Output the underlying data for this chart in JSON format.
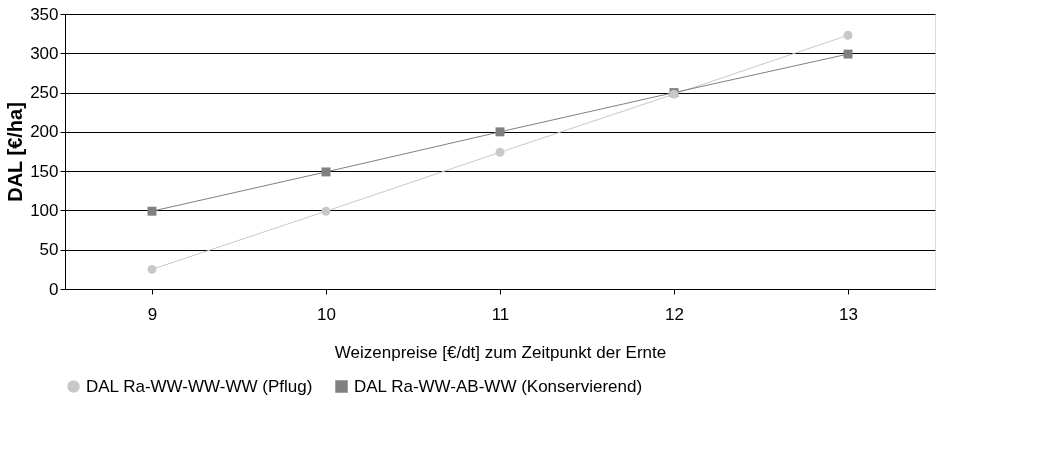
{
  "chart_data": {
    "type": "line",
    "xlabel": "Weizenpreise [€/dt] zum Zeitpunkt der Ernte",
    "ylabel": "DAL [€/ha]",
    "categories": [
      "9",
      "10",
      "11",
      "12",
      "13"
    ],
    "series": [
      {
        "name": "DAL Ra-WW-WW-WW (Pflug)",
        "color": "#c8c8c8",
        "marker": "circle",
        "values": [
          25,
          99,
          174,
          248,
          323
        ]
      },
      {
        "name": "DAL Ra-WW-AB-WW (Konservierend)",
        "color": "#808080",
        "marker": "square",
        "values": [
          99,
          149,
          200,
          250,
          299
        ]
      }
    ],
    "ylim": [
      0,
      350
    ],
    "yticks": [
      0,
      50,
      100,
      150,
      200,
      250,
      300,
      350
    ],
    "grid": "y",
    "legend": "bottom"
  }
}
